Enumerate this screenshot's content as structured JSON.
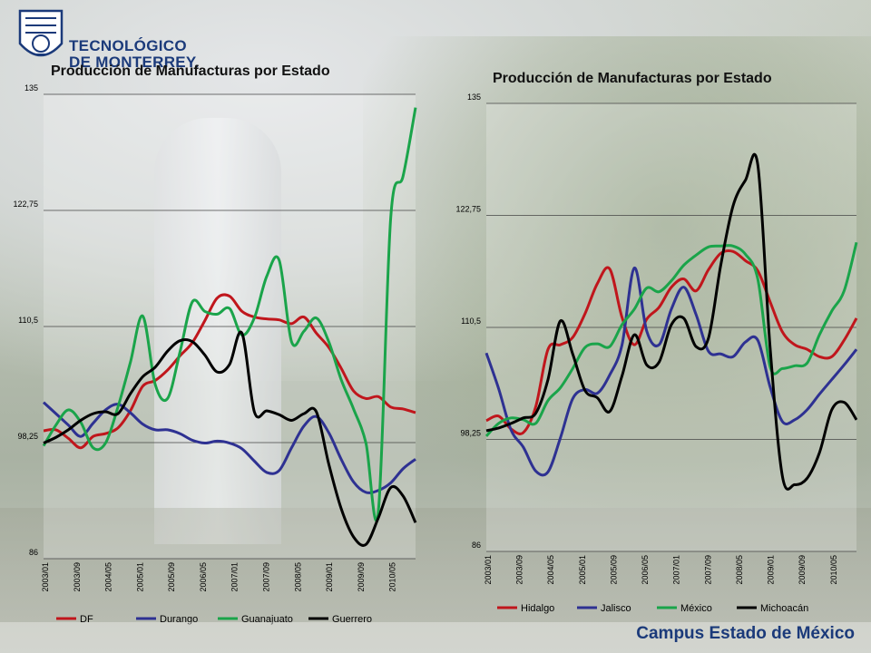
{
  "logo": {
    "line1": "TECNOLÓGICO",
    "line2": "DE MONTERREY."
  },
  "footer": "Campus Estado de México",
  "chart_data": [
    {
      "type": "line",
      "title": "Producción de Manufacturas por Estado",
      "ylim": [
        86,
        135
      ],
      "yticks": [
        "86",
        "98,25",
        "110,5",
        "122,75",
        "135"
      ],
      "ytick_values": [
        86,
        98.25,
        110.5,
        122.75,
        135
      ],
      "xticks": [
        "2003/01",
        "2003/09",
        "2004/05",
        "2005/01",
        "2005/09",
        "2006/05",
        "2007/01",
        "2007/09",
        "2008/05",
        "2009/01",
        "2009/09",
        "2010/05"
      ],
      "grid": true,
      "legend": "bottom",
      "series": [
        {
          "name": "DF",
          "color": "#c0161c",
          "values": [
            99.5,
            99.6,
            98.7,
            97.7,
            98.9,
            99.2,
            99.8,
            101.6,
            104.2,
            104.8,
            105.9,
            107.4,
            108.8,
            111.1,
            113.5,
            113.7,
            112.1,
            111.5,
            111.3,
            111.2,
            110.8,
            111.5,
            109.8,
            108.3,
            106.1,
            103.7,
            102.9,
            103.1,
            102.0,
            101.8,
            101.4
          ]
        },
        {
          "name": "Durango",
          "color": "#2e3192",
          "values": [
            102.5,
            101.3,
            100.1,
            98.9,
            100.3,
            101.7,
            102.3,
            101.4,
            100.2,
            99.6,
            99.6,
            99.2,
            98.5,
            98.2,
            98.4,
            98.2,
            97.6,
            96.3,
            95.1,
            95.3,
            97.7,
            100.0,
            101.0,
            99.3,
            96.5,
            94.1,
            93.0,
            93.2,
            94.0,
            95.5,
            96.5
          ]
        },
        {
          "name": "Guanajuato",
          "color": "#1aa44a",
          "values": [
            97.9,
            100.1,
            101.7,
            100.4,
            97.7,
            98.2,
            102.0,
            106.7,
            111.6,
            104.4,
            102.9,
            107.8,
            113.1,
            112.1,
            111.8,
            112.4,
            109.6,
            111.4,
            115.8,
            117.5,
            108.9,
            110.0,
            111.4,
            108.9,
            104.9,
            101.8,
            98.2,
            91.0,
            122.0,
            126.4,
            133.6
          ]
        },
        {
          "name": "Guerrero",
          "color": "#000000",
          "values": [
            98.2,
            98.8,
            99.6,
            100.6,
            101.3,
            101.5,
            101.3,
            103.4,
            105.2,
            106.2,
            107.9,
            109.0,
            108.9,
            107.5,
            105.7,
            106.5,
            109.8,
            101.5,
            101.6,
            101.2,
            100.6,
            101.3,
            101.5,
            96.0,
            91.3,
            88.3,
            87.5,
            90.3,
            93.5,
            92.6,
            89.8
          ]
        }
      ]
    },
    {
      "type": "line",
      "title": "Producción de Manufacturas por Estado",
      "ylim": [
        86,
        135
      ],
      "yticks": [
        "86",
        "98,25",
        "110,5",
        "122,75",
        "135"
      ],
      "ytick_values": [
        86,
        98.25,
        110.5,
        122.75,
        135
      ],
      "xticks": [
        "2003/01",
        "2003/09",
        "2004/05",
        "2005/01",
        "2005/09",
        "2006/05",
        "2007/01",
        "2007/09",
        "2008/05",
        "2009/01",
        "2009/09",
        "2010/05"
      ],
      "grid": true,
      "legend": "bottom",
      "series": [
        {
          "name": "Hidalgo",
          "color": "#c0161c",
          "values": [
            100.3,
            100.8,
            99.4,
            99.0,
            101.8,
            108.1,
            108.6,
            109.4,
            112.0,
            115.3,
            116.9,
            111.6,
            108.6,
            111.4,
            112.7,
            114.9,
            115.8,
            114.5,
            116.8,
            118.6,
            118.8,
            117.8,
            116.7,
            113.3,
            110.0,
            108.6,
            108.1,
            107.3,
            107.3,
            109.1,
            111.5
          ]
        },
        {
          "name": "Jalisco",
          "color": "#2e3192",
          "values": [
            107.7,
            103.8,
            99.3,
            97.4,
            94.8,
            94.7,
            98.4,
            102.7,
            103.7,
            103.3,
            105.3,
            108.6,
            117.0,
            110.1,
            108.6,
            112.5,
            114.9,
            111.9,
            107.9,
            107.6,
            107.3,
            108.9,
            109.1,
            104.0,
            100.2,
            100.4,
            101.5,
            103.2,
            104.8,
            106.4,
            108.1
          ]
        },
        {
          "name": "México",
          "color": "#1aa44a",
          "values": [
            98.6,
            100.0,
            100.6,
            100.4,
            100.0,
            102.5,
            103.9,
            106.0,
            108.3,
            108.7,
            108.4,
            110.8,
            112.5,
            114.8,
            114.4,
            115.6,
            117.3,
            118.4,
            119.3,
            119.4,
            119.4,
            118.5,
            115.8,
            106.2,
            106.0,
            106.3,
            106.6,
            109.7,
            112.3,
            114.5,
            119.8
          ]
        },
        {
          "name": "Michoacán",
          "color": "#000000",
          "values": [
            99.2,
            99.5,
            100.0,
            100.6,
            101.1,
            104.8,
            111.2,
            107.6,
            103.6,
            102.8,
            101.3,
            105.2,
            109.7,
            106.4,
            106.7,
            110.8,
            111.5,
            108.4,
            109.3,
            117.3,
            123.8,
            126.6,
            128.3,
            108.3,
            94.2,
            93.3,
            94.0,
            96.8,
            101.5,
            102.3,
            100.4
          ]
        }
      ]
    }
  ]
}
